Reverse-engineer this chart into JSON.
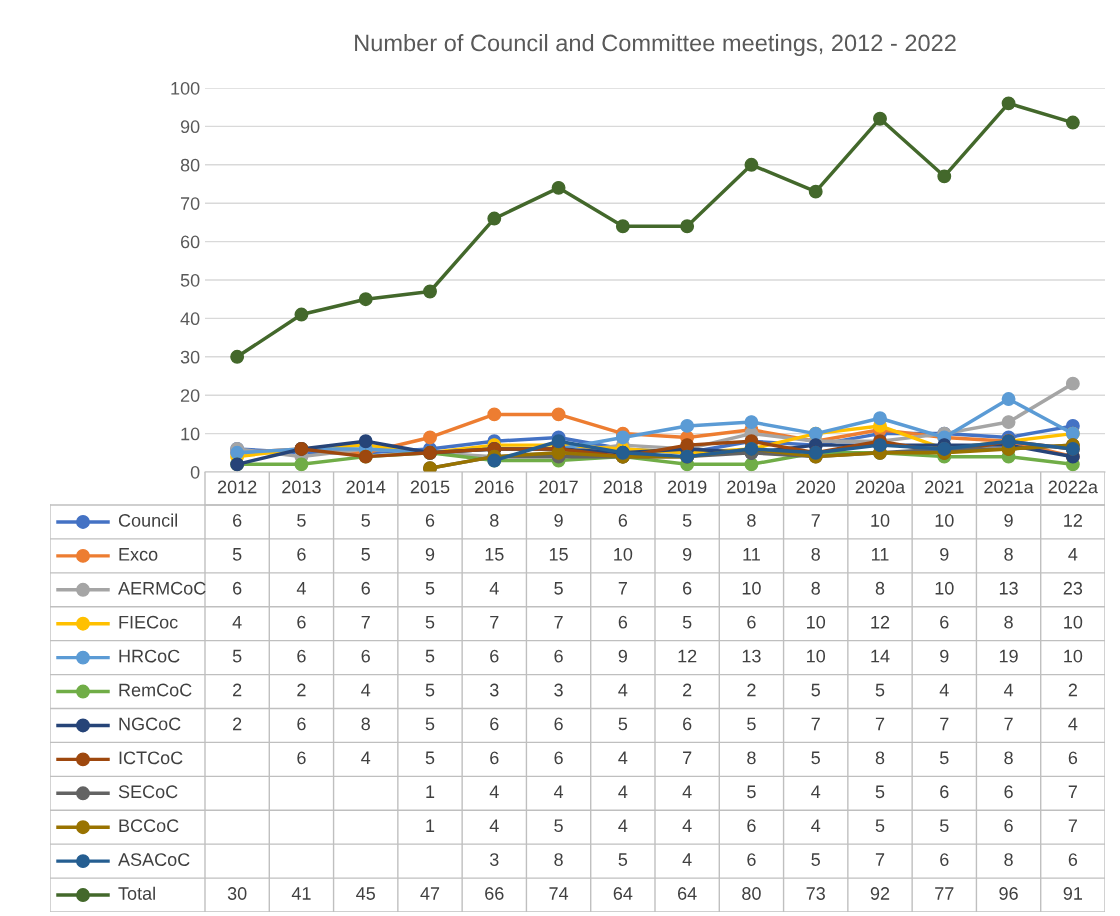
{
  "chart_data": {
    "type": "line",
    "title": "Number of Council and Committee meetings, 2012 - 2022",
    "categories": [
      "2012",
      "2013",
      "2014",
      "2015",
      "2016",
      "2017",
      "2018",
      "2019",
      "2019a",
      "2020",
      "2020a",
      "2021",
      "2021a",
      "2022a"
    ],
    "series": [
      {
        "name": "Council",
        "color": "#4472c4",
        "values": [
          6,
          5,
          5,
          6,
          8,
          9,
          6,
          5,
          8,
          7,
          10,
          10,
          9,
          12
        ]
      },
      {
        "name": "Exco",
        "color": "#ed7d31",
        "values": [
          5,
          6,
          5,
          9,
          15,
          15,
          10,
          9,
          11,
          8,
          11,
          9,
          8,
          4
        ]
      },
      {
        "name": "AERMCoC",
        "color": "#a5a5a5",
        "values": [
          6,
          4,
          6,
          5,
          4,
          5,
          7,
          6,
          10,
          8,
          8,
          10,
          13,
          23
        ]
      },
      {
        "name": "FIECoc",
        "color": "#ffc000",
        "values": [
          4,
          6,
          7,
          5,
          7,
          7,
          6,
          5,
          6,
          10,
          12,
          6,
          8,
          10
        ]
      },
      {
        "name": "HRCoC",
        "color": "#5b9bd5",
        "values": [
          5,
          6,
          6,
          5,
          6,
          6,
          9,
          12,
          13,
          10,
          14,
          9,
          19,
          10
        ]
      },
      {
        "name": "RemCoC",
        "color": "#70ad47",
        "values": [
          2,
          2,
          4,
          5,
          3,
          3,
          4,
          2,
          2,
          5,
          5,
          4,
          4,
          2
        ]
      },
      {
        "name": "NGCoC",
        "color": "#264478",
        "values": [
          2,
          6,
          8,
          5,
          6,
          6,
          5,
          6,
          5,
          7,
          7,
          7,
          7,
          4
        ]
      },
      {
        "name": "ICTCoC",
        "color": "#9e480e",
        "values": [
          null,
          6,
          4,
          5,
          6,
          6,
          4,
          7,
          8,
          5,
          8,
          5,
          8,
          6
        ]
      },
      {
        "name": "SECoC",
        "color": "#636363",
        "values": [
          null,
          null,
          null,
          1,
          4,
          4,
          4,
          4,
          5,
          4,
          5,
          6,
          6,
          7
        ]
      },
      {
        "name": "BCCoC",
        "color": "#997300",
        "values": [
          null,
          null,
          null,
          1,
          4,
          5,
          4,
          4,
          6,
          4,
          5,
          5,
          6,
          7
        ]
      },
      {
        "name": "ASACoC",
        "color": "#255e91",
        "values": [
          null,
          null,
          null,
          null,
          3,
          8,
          5,
          4,
          6,
          5,
          7,
          6,
          8,
          6
        ]
      },
      {
        "name": "Total",
        "color": "#43682b",
        "values": [
          30,
          41,
          45,
          47,
          66,
          74,
          64,
          64,
          80,
          73,
          92,
          77,
          96,
          91
        ]
      }
    ],
    "ylim": [
      0,
      100
    ],
    "yticks": [
      0,
      10,
      20,
      30,
      40,
      50,
      60,
      70,
      80,
      90,
      100
    ],
    "grid": "y",
    "marker": "circle",
    "line_style": "solid",
    "legend": "bottom",
    "data_labels": true
  }
}
